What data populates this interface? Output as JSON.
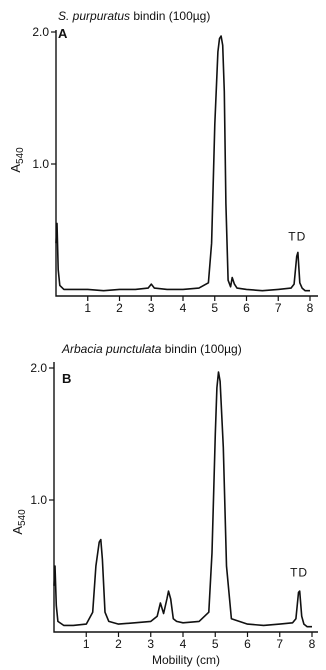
{
  "chart_data": [
    {
      "type": "line",
      "panel": "A",
      "title_italic": "S. purpuratus",
      "title_rest": " bindin (100µg)",
      "ylabel": "A",
      "ylabel_sub": "540",
      "xlabel": "",
      "xlim": [
        0,
        8
      ],
      "ylim": [
        0,
        2.0
      ],
      "yticks": [
        {
          "value": 1.0,
          "label": "1.0"
        },
        {
          "value": 2.0,
          "label": "2.0"
        }
      ],
      "xticks": [
        {
          "value": 1,
          "label": "1"
        },
        {
          "value": 2,
          "label": "2"
        },
        {
          "value": 3,
          "label": "3"
        },
        {
          "value": 4,
          "label": "4"
        },
        {
          "value": 5,
          "label": "5"
        },
        {
          "value": 6,
          "label": "6"
        },
        {
          "value": 7,
          "label": "7"
        },
        {
          "value": 8,
          "label": "8"
        }
      ],
      "annotations": [
        {
          "text": "TD",
          "x": 7.6,
          "y": 0.42
        }
      ],
      "x": [
        0.0,
        0.03,
        0.07,
        0.12,
        0.25,
        0.5,
        1.0,
        1.5,
        2.0,
        2.5,
        2.9,
        3.0,
        3.1,
        3.5,
        4.0,
        4.5,
        4.8,
        4.9,
        5.0,
        5.1,
        5.15,
        5.2,
        5.25,
        5.3,
        5.35,
        5.42,
        5.5,
        5.55,
        5.62,
        5.7,
        6.0,
        6.5,
        7.0,
        7.4,
        7.5,
        7.58,
        7.62,
        7.68,
        7.75,
        7.85,
        8.0
      ],
      "y": [
        0.4,
        0.55,
        0.2,
        0.08,
        0.05,
        0.05,
        0.05,
        0.04,
        0.05,
        0.05,
        0.06,
        0.09,
        0.06,
        0.05,
        0.05,
        0.06,
        0.1,
        0.4,
        1.3,
        1.85,
        1.95,
        1.97,
        1.9,
        1.55,
        0.7,
        0.12,
        0.07,
        0.14,
        0.09,
        0.06,
        0.05,
        0.04,
        0.05,
        0.06,
        0.09,
        0.3,
        0.33,
        0.1,
        0.06,
        0.04,
        0.04
      ]
    },
    {
      "type": "line",
      "panel": "B",
      "title_italic": "Arbacia punctulata",
      "title_rest": " bindin (100µg)",
      "ylabel": "A",
      "ylabel_sub": "540",
      "xlabel": "Mobility (cm)",
      "xlim": [
        0,
        8
      ],
      "ylim": [
        0,
        2.0
      ],
      "yticks": [
        {
          "value": 1.0,
          "label": "1.0"
        },
        {
          "value": 2.0,
          "label": "2.0"
        }
      ],
      "xticks": [
        {
          "value": 1,
          "label": "1"
        },
        {
          "value": 2,
          "label": "2"
        },
        {
          "value": 3,
          "label": "3"
        },
        {
          "value": 4,
          "label": "4"
        },
        {
          "value": 5,
          "label": "5"
        },
        {
          "value": 6,
          "label": "6"
        },
        {
          "value": 7,
          "label": "7"
        },
        {
          "value": 8,
          "label": "8"
        }
      ],
      "annotations": [
        {
          "text": "TD",
          "x": 7.6,
          "y": 0.42
        }
      ],
      "x": [
        0.0,
        0.03,
        0.07,
        0.12,
        0.3,
        0.6,
        1.0,
        1.2,
        1.3,
        1.4,
        1.45,
        1.5,
        1.58,
        1.7,
        2.0,
        2.5,
        3.0,
        3.2,
        3.3,
        3.4,
        3.5,
        3.55,
        3.62,
        3.7,
        3.8,
        4.0,
        4.5,
        4.8,
        4.9,
        5.0,
        5.05,
        5.1,
        5.15,
        5.25,
        5.35,
        5.5,
        6.0,
        6.5,
        7.0,
        7.4,
        7.5,
        7.58,
        7.62,
        7.68,
        7.75,
        7.85,
        8.0
      ],
      "y": [
        0.35,
        0.5,
        0.2,
        0.08,
        0.05,
        0.05,
        0.06,
        0.15,
        0.5,
        0.68,
        0.7,
        0.55,
        0.15,
        0.08,
        0.06,
        0.07,
        0.08,
        0.12,
        0.22,
        0.14,
        0.25,
        0.31,
        0.25,
        0.1,
        0.08,
        0.07,
        0.08,
        0.15,
        0.6,
        1.5,
        1.85,
        1.97,
        1.9,
        1.4,
        0.5,
        0.1,
        0.06,
        0.05,
        0.06,
        0.07,
        0.1,
        0.3,
        0.31,
        0.12,
        0.06,
        0.04,
        0.04
      ]
    }
  ]
}
